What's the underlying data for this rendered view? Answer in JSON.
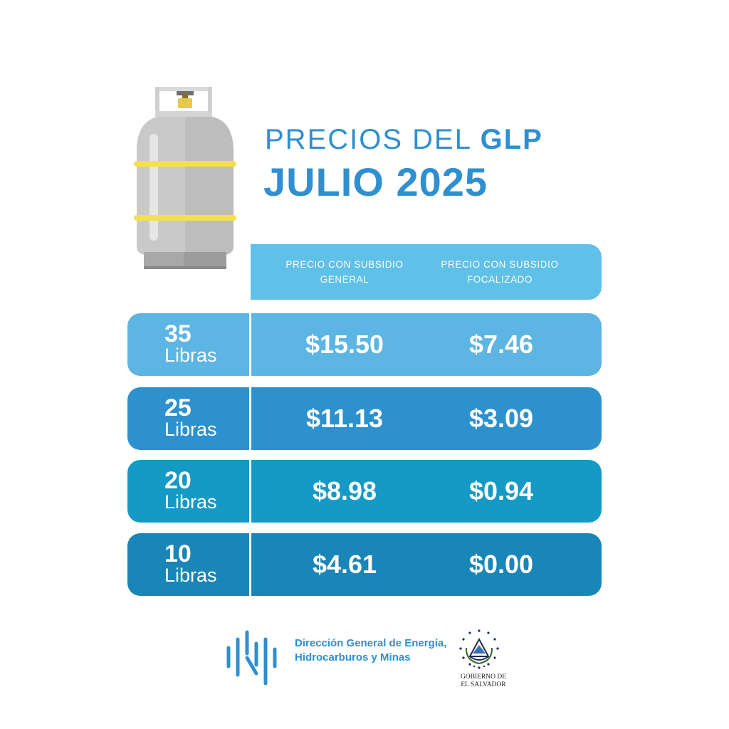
{
  "title": {
    "line1_prefix": "PRECIOS DEL",
    "line1_bold": "GLP",
    "line2": "JULIO 2025"
  },
  "header": {
    "col_general": "PRECIO CON SUBSIDIO GENERAL",
    "col_focalizado": "PRECIO CON SUBSIDIO FOCALIZADO"
  },
  "rows": [
    {
      "size": "35",
      "unit": "Libras",
      "general": "$15.50",
      "focalizado": "$7.46"
    },
    {
      "size": "25",
      "unit": "Libras",
      "general": "$11.13",
      "focalizado": "$3.09"
    },
    {
      "size": "20",
      "unit": "Libras",
      "general": "$8.98",
      "focalizado": "$0.94"
    },
    {
      "size": "10",
      "unit": "Libras",
      "general": "$4.61",
      "focalizado": "$0.00"
    }
  ],
  "footer": {
    "org_name": "Dirección General de Energía, Hidrocarburos y Minas",
    "gov_line1": "GOBIERNO DE",
    "gov_line2": "EL SALVADOR"
  },
  "colors": {
    "accent": "#2f8fd0",
    "header": "#5fc0e8",
    "row_35": "#5cb5e2",
    "row_25": "#2c91cd",
    "row_20": "#1599c5",
    "row_10": "#1a85b7"
  },
  "icons": [
    "gas-cylinder-icon",
    "dgehm-logo-icon",
    "el-salvador-coat-of-arms-icon"
  ]
}
